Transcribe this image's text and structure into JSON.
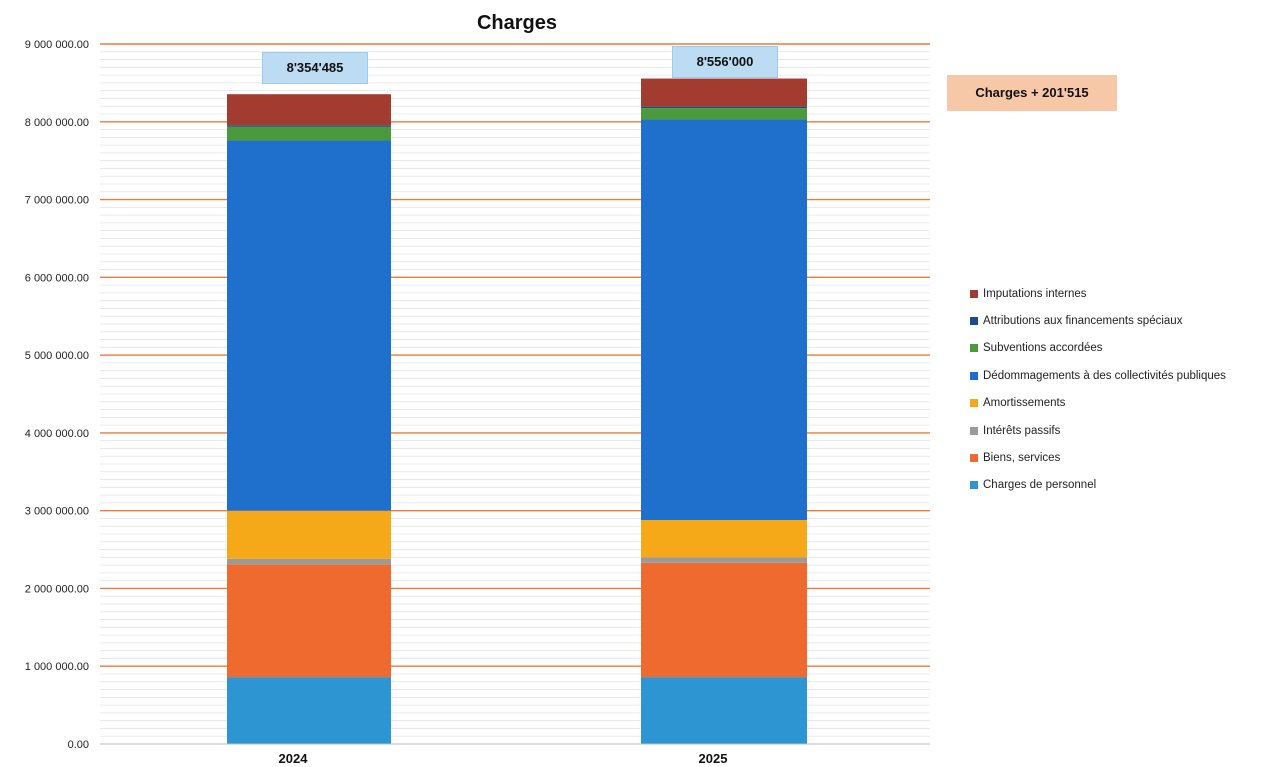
{
  "chart_data": {
    "type": "bar",
    "stacked": true,
    "title": "Charges",
    "categories": [
      "2024",
      "2025"
    ],
    "ylim": [
      0,
      9000000
    ],
    "y_tick_labels": [
      "0.00",
      "1 000 000.00",
      "2 000 000.00",
      "3 000 000.00",
      "4 000 000.00",
      "5 000 000.00",
      "6 000 000.00",
      "7 000 000.00",
      "8 000 000.00",
      "9 000 000.00"
    ],
    "grid": true,
    "legend_position": "right",
    "series": [
      {
        "name": "Charges de personnel",
        "color": "#2e95d3",
        "values": [
          860000,
          860000
        ]
      },
      {
        "name": "Biens, services",
        "color": "#ee6a2e",
        "values": [
          1450000,
          1470000
        ]
      },
      {
        "name": "Intérêts passifs",
        "color": "#9a9a9a",
        "values": [
          70000,
          70000
        ]
      },
      {
        "name": "Amortissements",
        "color": "#f5a818",
        "values": [
          620000,
          480000
        ]
      },
      {
        "name": "Dédommagements à des collectivités publiques",
        "color": "#1f6fcc",
        "values": [
          4760000,
          5150000
        ]
      },
      {
        "name": "Subventions accordées",
        "color": "#4a9a3c",
        "values": [
          175000,
          145000
        ]
      },
      {
        "name": "Attributions aux financements spéciaux",
        "color": "#1b4e86",
        "values": [
          20000,
          20000
        ]
      },
      {
        "name": "Imputations internes",
        "color": "#a33c30",
        "values": [
          399485,
          361000
        ]
      }
    ],
    "totals": [
      "8'354'485",
      "8'556'000"
    ],
    "annotation": "Charges + 201'515"
  }
}
